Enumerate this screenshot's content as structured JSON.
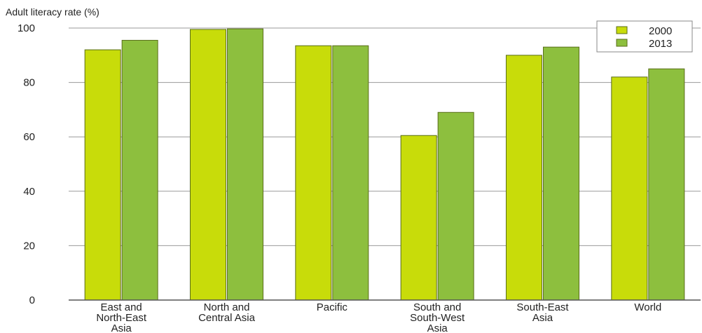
{
  "chart_data": {
    "type": "bar",
    "ylabel": "Adult literacy rate (%)",
    "ylim": [
      0,
      100
    ],
    "yticks": [
      0,
      20,
      40,
      60,
      80,
      100
    ],
    "grid": true,
    "legend_position": "top-right",
    "categories": [
      [
        "East and",
        "North-East",
        "Asia"
      ],
      [
        "North and",
        "Central Asia"
      ],
      [
        "Pacific"
      ],
      [
        "South and",
        "South-West",
        "Asia"
      ],
      [
        "South-East",
        "Asia"
      ],
      [
        "World"
      ]
    ],
    "series": [
      {
        "name": "2000",
        "color": "#c8dc0a",
        "values": [
          92,
          99.5,
          93.5,
          60.5,
          90,
          82
        ]
      },
      {
        "name": "2013",
        "color": "#8dbf3e",
        "values": [
          95.5,
          99.7,
          93.5,
          69,
          93,
          85
        ]
      }
    ]
  }
}
